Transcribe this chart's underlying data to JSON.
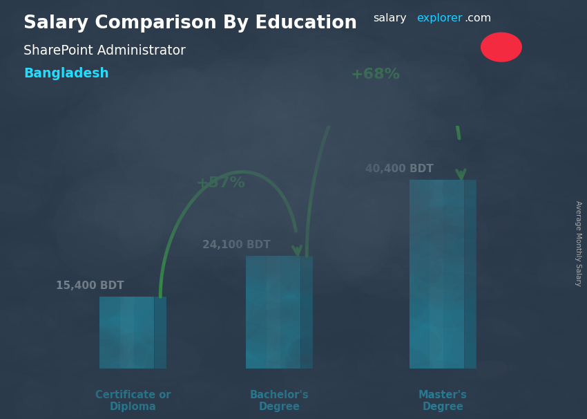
{
  "title_salary": "Salary Comparison By Education",
  "subtitle_job": "SharePoint Administrator",
  "subtitle_country": "Bangladesh",
  "watermark_salary": "salary",
  "watermark_explorer": "explorer",
  "watermark_com": ".com",
  "ylabel": "Average Monthly Salary",
  "categories": [
    "Certificate or\nDiploma",
    "Bachelor's\nDegree",
    "Master's\nDegree"
  ],
  "values": [
    15400,
    24100,
    40400
  ],
  "value_labels": [
    "15,400 BDT",
    "24,100 BDT",
    "40,400 BDT"
  ],
  "pct_labels": [
    "+57%",
    "+68%"
  ],
  "bar_face_color": "#1ad0f0",
  "bar_right_color": "#0898b8",
  "bar_top_color": "#55e0ff",
  "bar_width": 0.32,
  "side_depth": 0.07,
  "side_skew": 0.04,
  "bg_color": "#2a3a4a",
  "overlay_color": [
    0.12,
    0.2,
    0.28
  ],
  "overlay_alpha": 0.65,
  "title_color": "#ffffff",
  "subtitle_job_color": "#ffffff",
  "subtitle_country_color": "#22ddff",
  "value_label_color": "#ffffff",
  "pct_color": "#44ff44",
  "arrow_color": "#44ff44",
  "category_color": "#22ddff",
  "watermark_salary_color": "#ffffff",
  "watermark_explorer_color": "#22ccff",
  "watermark_com_color": "#ffffff",
  "flag_green": "#006a4e",
  "flag_red": "#f42a41",
  "xlim": [
    -0.3,
    2.7
  ],
  "ylim": [
    0,
    52000
  ],
  "bar_positions": [
    0.3,
    1.15,
    2.1
  ]
}
